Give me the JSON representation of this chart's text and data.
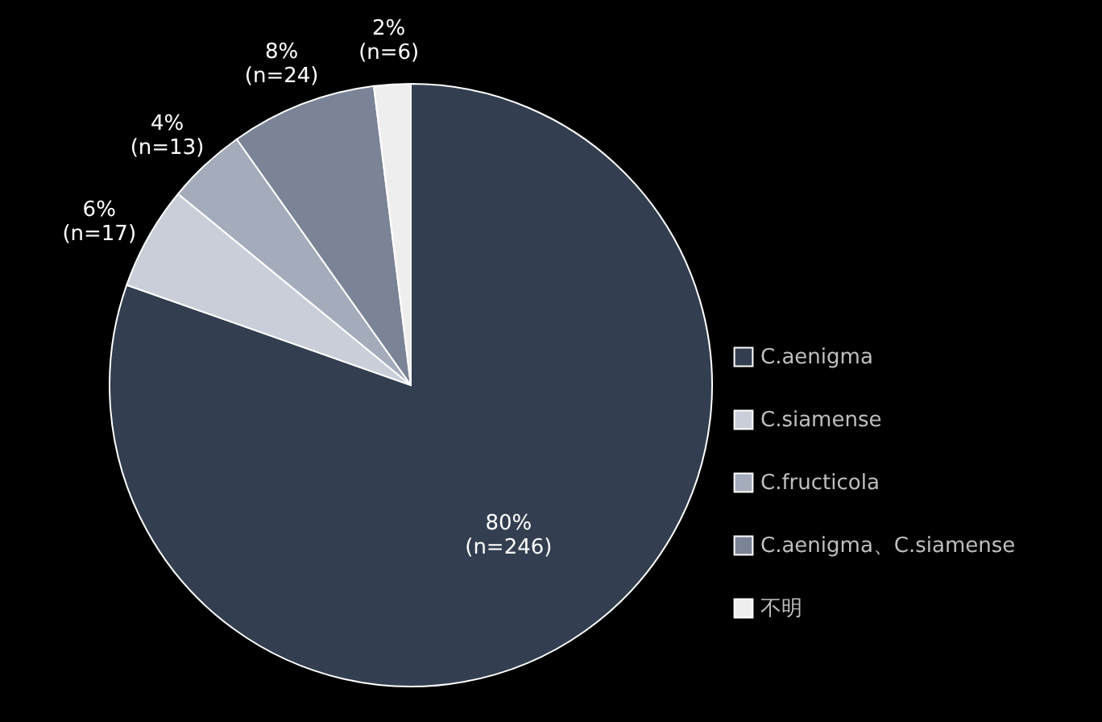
{
  "chart_data": {
    "type": "pie",
    "categories": [
      "C.aenigma",
      "C.siamense",
      "C.fructicola",
      "C.aenigma、C.siamense",
      "不明"
    ],
    "values": [
      246,
      17,
      13,
      24,
      6
    ],
    "colors": [
      "#333f50",
      "#c9ced8",
      "#a4abba",
      "#7b8496",
      "#eeeeee"
    ],
    "value_labels": [
      "80%\n(n=246)",
      "6%\n(n=17)",
      "4%\n(n=13)",
      "8%\n(n=24)",
      "2%\n(n=6)"
    ],
    "legend": "right"
  }
}
